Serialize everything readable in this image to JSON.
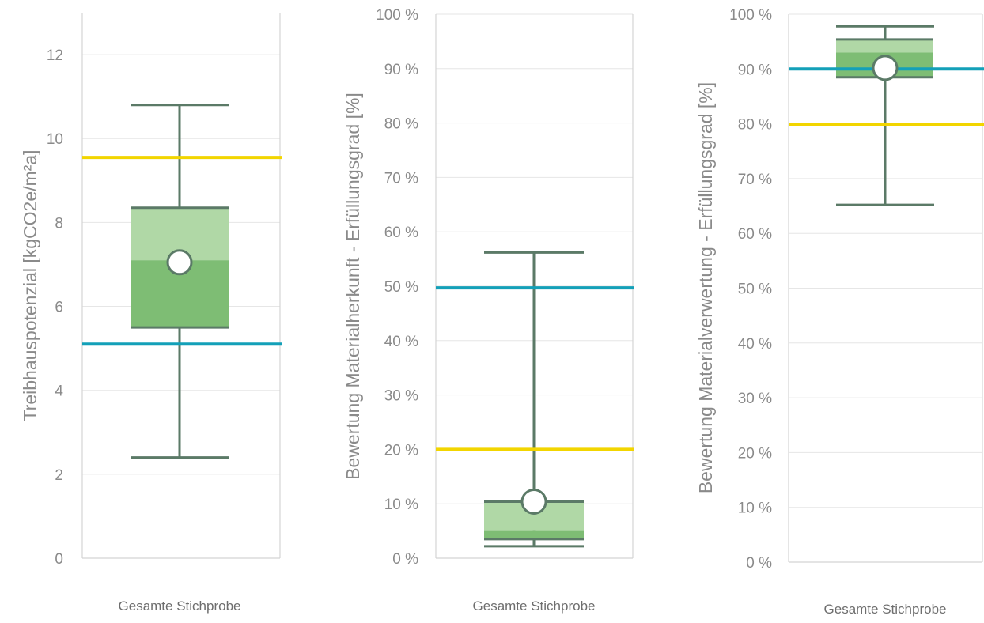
{
  "colors": {
    "whisker": "#5b7a67",
    "box_upper": "#b0d8a6",
    "box_lower": "#7ebd74",
    "reference_yellow": "#f2d500",
    "reference_teal": "#13a0b8",
    "grid": "#e6e6e6",
    "plot_border": "#d4d4d4",
    "mean_marker_fill": "#ffffff"
  },
  "chart_data": [
    {
      "type": "boxplot",
      "ylabel": "Treibhauspotenzial [kgCO2e/m²a]",
      "ylim": [
        0,
        13
      ],
      "yticks": [
        0,
        2,
        4,
        6,
        8,
        10,
        12
      ],
      "ytick_labels": [
        "0",
        "2",
        "4",
        "6",
        "8",
        "10",
        "12"
      ],
      "categories": [
        "Gesamte Stichprobe"
      ],
      "grid": true,
      "box": {
        "min": 2.4,
        "q1": 5.5,
        "median": 7.1,
        "q3": 8.35,
        "max": 10.8,
        "mean": 7.05
      },
      "reference_lines": [
        {
          "value": 9.55,
          "color": "#f2d500"
        },
        {
          "value": 5.1,
          "color": "#13a0b8"
        }
      ]
    },
    {
      "type": "boxplot",
      "ylabel": "Bewertung Materialherkunft - Erfüllungsgrad [%]",
      "ylim": [
        0,
        100
      ],
      "yticks": [
        0,
        10,
        20,
        30,
        40,
        50,
        60,
        70,
        80,
        90,
        100
      ],
      "ytick_labels": [
        "0 %",
        "10 %",
        "20 %",
        "30 %",
        "40 %",
        "50 %",
        "60 %",
        "70 %",
        "80 %",
        "90 %",
        "100 %"
      ],
      "categories": [
        "Gesamte Stichprobe"
      ],
      "grid": true,
      "box": {
        "min": 2.2,
        "q1": 3.5,
        "median": 5,
        "q3": 10.4,
        "max": 56.2,
        "mean": 10.4
      },
      "reference_lines": [
        {
          "value": 49.7,
          "color": "#13a0b8"
        },
        {
          "value": 20,
          "color": "#f2d500"
        }
      ]
    },
    {
      "type": "boxplot",
      "ylabel": "Bewertung Materialverwertung - Erfüllungsgrad [%]",
      "ylim": [
        0,
        100
      ],
      "yticks": [
        0,
        10,
        20,
        30,
        40,
        50,
        60,
        70,
        80,
        90,
        100
      ],
      "ytick_labels": [
        "0 %",
        "10 %",
        "20 %",
        "30 %",
        "40 %",
        "50 %",
        "60 %",
        "70 %",
        "80 %",
        "90 %",
        "100 %"
      ],
      "categories": [
        "Gesamte Stichprobe"
      ],
      "grid": true,
      "box": {
        "min": 65.2,
        "q1": 88.5,
        "median": 93,
        "q3": 95.4,
        "max": 97.8,
        "mean": 90.2
      },
      "reference_lines": [
        {
          "value": 90,
          "color": "#13a0b8"
        },
        {
          "value": 79.9,
          "color": "#f2d500"
        }
      ]
    }
  ]
}
